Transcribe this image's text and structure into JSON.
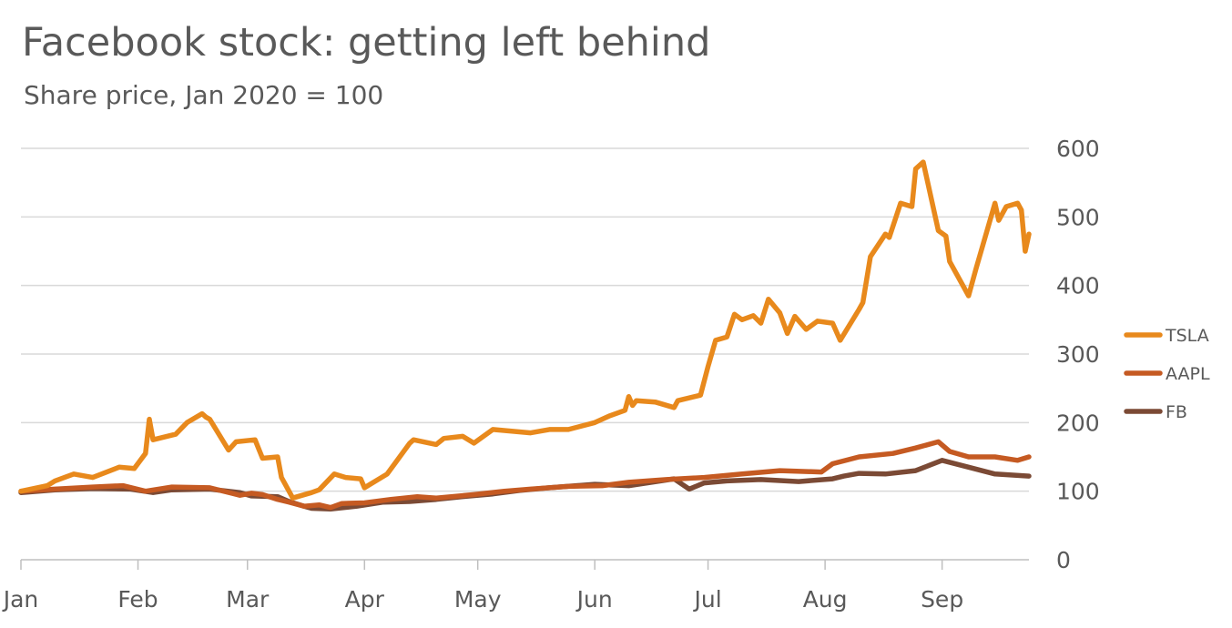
{
  "chart_data": {
    "type": "line",
    "title": "Facebook stock: getting left behind",
    "subtitle": "Share price, Jan 2020 = 100",
    "xlabel": "",
    "ylabel": "",
    "x_tick_labels": [
      "Jan",
      "Feb",
      "Mar",
      "Apr",
      "May",
      "Jun",
      "Jul",
      "Aug",
      "Sep"
    ],
    "y_ticks": [
      0,
      100,
      200,
      300,
      400,
      500,
      600
    ],
    "ylim": [
      0,
      600
    ],
    "xlim": [
      "2020-01-01",
      "2020-09-24"
    ],
    "grid": true,
    "y_axis_side": "right",
    "legend_position": "right",
    "series": [
      {
        "name": "TSLA",
        "color": "#E8891C",
        "x": [
          "2020-01-01",
          "2020-01-08",
          "2020-01-10",
          "2020-01-15",
          "2020-01-20",
          "2020-01-27",
          "2020-01-31",
          "2020-02-03",
          "2020-02-04",
          "2020-02-05",
          "2020-02-11",
          "2020-02-14",
          "2020-02-18",
          "2020-02-19",
          "2020-02-20",
          "2020-02-25",
          "2020-02-27",
          "2020-03-03",
          "2020-03-05",
          "2020-03-09",
          "2020-03-10",
          "2020-03-13",
          "2020-03-18",
          "2020-03-20",
          "2020-03-24",
          "2020-03-27",
          "2020-03-31",
          "2020-04-01",
          "2020-04-07",
          "2020-04-13",
          "2020-04-14",
          "2020-04-20",
          "2020-04-22",
          "2020-04-27",
          "2020-04-30",
          "2020-05-05",
          "2020-05-15",
          "2020-05-20",
          "2020-05-25",
          "2020-06-01",
          "2020-06-05",
          "2020-06-09",
          "2020-06-10",
          "2020-06-11",
          "2020-06-12",
          "2020-06-17",
          "2020-06-22",
          "2020-06-23",
          "2020-06-29",
          "2020-07-01",
          "2020-07-03",
          "2020-07-06",
          "2020-07-08",
          "2020-07-10",
          "2020-07-13",
          "2020-07-15",
          "2020-07-17",
          "2020-07-20",
          "2020-07-22",
          "2020-07-24",
          "2020-07-27",
          "2020-07-30",
          "2020-08-03",
          "2020-08-05",
          "2020-08-10",
          "2020-08-11",
          "2020-08-13",
          "2020-08-17",
          "2020-08-18",
          "2020-08-21",
          "2020-08-24",
          "2020-08-25",
          "2020-08-27",
          "2020-08-31",
          "2020-09-02",
          "2020-09-03",
          "2020-09-08",
          "2020-09-10",
          "2020-09-15",
          "2020-09-16",
          "2020-09-18",
          "2020-09-21",
          "2020-09-22",
          "2020-09-23",
          "2020-09-24"
        ],
        "values": [
          100,
          108,
          115,
          125,
          120,
          135,
          133,
          155,
          205,
          175,
          183,
          200,
          213,
          208,
          205,
          160,
          172,
          175,
          148,
          150,
          120,
          90,
          98,
          102,
          125,
          120,
          118,
          105,
          125,
          170,
          175,
          168,
          177,
          180,
          170,
          190,
          185,
          190,
          190,
          200,
          210,
          218,
          238,
          225,
          232,
          230,
          222,
          232,
          240,
          282,
          320,
          325,
          358,
          350,
          356,
          345,
          380,
          360,
          330,
          355,
          336,
          348,
          345,
          320,
          365,
          375,
          442,
          475,
          470,
          520,
          515,
          570,
          580,
          480,
          472,
          435,
          385,
          425,
          520,
          495,
          515,
          520,
          510,
          450,
          475
        ]
      },
      {
        "name": "AAPL",
        "color": "#C55A22",
        "x": [
          "2020-01-01",
          "2020-01-10",
          "2020-01-20",
          "2020-01-28",
          "2020-02-03",
          "2020-02-10",
          "2020-02-20",
          "2020-02-28",
          "2020-03-02",
          "2020-03-05",
          "2020-03-09",
          "2020-03-12",
          "2020-03-16",
          "2020-03-20",
          "2020-03-23",
          "2020-03-26",
          "2020-04-01",
          "2020-04-08",
          "2020-04-15",
          "2020-04-20",
          "2020-04-30",
          "2020-05-08",
          "2020-05-15",
          "2020-05-25",
          "2020-06-03",
          "2020-06-10",
          "2020-06-20",
          "2020-06-30",
          "2020-07-10",
          "2020-07-20",
          "2020-07-31",
          "2020-08-03",
          "2020-08-10",
          "2020-08-19",
          "2020-08-25",
          "2020-08-31",
          "2020-09-03",
          "2020-09-08",
          "2020-09-15",
          "2020-09-21",
          "2020-09-24"
        ],
        "values": [
          100,
          103,
          106,
          108,
          100,
          106,
          105,
          94,
          97,
          95,
          88,
          84,
          78,
          80,
          76,
          82,
          83,
          88,
          92,
          90,
          95,
          100,
          103,
          107,
          108,
          113,
          117,
          120,
          125,
          130,
          128,
          140,
          150,
          155,
          163,
          172,
          158,
          150,
          150,
          145,
          150
        ]
      },
      {
        "name": "FB",
        "color": "#7B4A35",
        "x": [
          "2020-01-01",
          "2020-01-10",
          "2020-01-20",
          "2020-01-30",
          "2020-02-05",
          "2020-02-10",
          "2020-02-20",
          "2020-02-28",
          "2020-03-02",
          "2020-03-09",
          "2020-03-12",
          "2020-03-16",
          "2020-03-18",
          "2020-03-23",
          "2020-03-30",
          "2020-04-06",
          "2020-04-13",
          "2020-04-20",
          "2020-04-27",
          "2020-05-05",
          "2020-05-12",
          "2020-05-20",
          "2020-06-01",
          "2020-06-10",
          "2020-06-22",
          "2020-06-26",
          "2020-06-30",
          "2020-07-06",
          "2020-07-15",
          "2020-07-25",
          "2020-08-03",
          "2020-08-06",
          "2020-08-10",
          "2020-08-17",
          "2020-08-25",
          "2020-09-01",
          "2020-09-08",
          "2020-09-15",
          "2020-09-24"
        ],
        "values": [
          98,
          102,
          104,
          103,
          98,
          102,
          103,
          98,
          93,
          92,
          85,
          78,
          75,
          74,
          78,
          84,
          85,
          88,
          92,
          96,
          101,
          105,
          110,
          108,
          118,
          103,
          112,
          115,
          117,
          114,
          118,
          122,
          126,
          125,
          130,
          145,
          135,
          125,
          122
        ]
      }
    ]
  }
}
